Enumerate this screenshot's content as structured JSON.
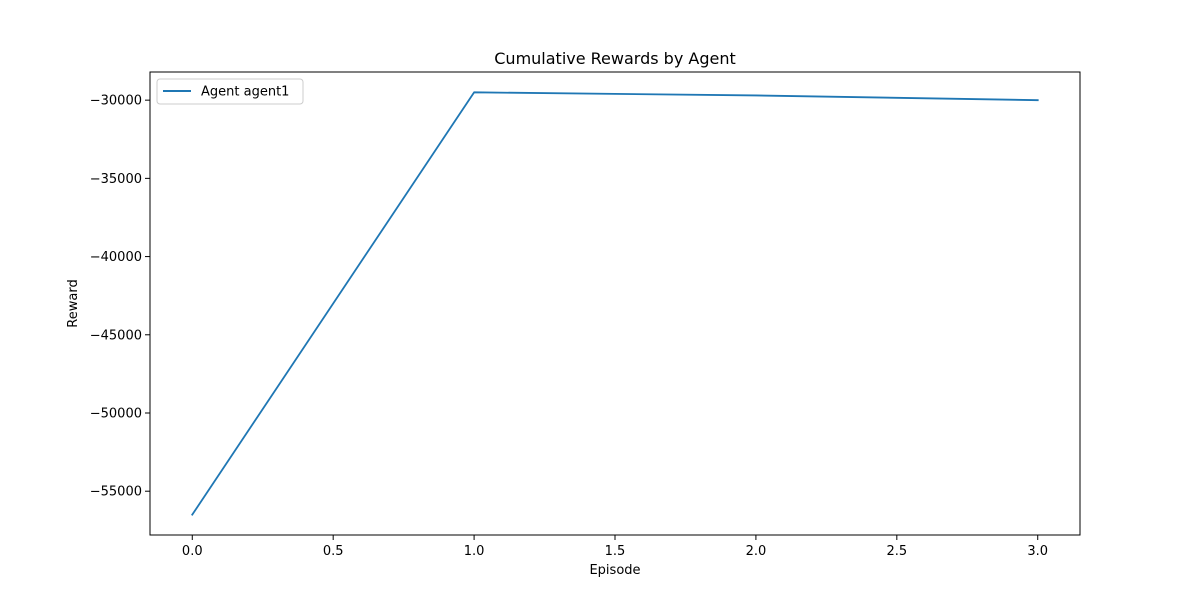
{
  "chart_data": {
    "type": "line",
    "title": "Cumulative Rewards by Agent",
    "xlabel": "Episode",
    "ylabel": "Reward",
    "x": [
      0,
      1,
      2,
      3
    ],
    "series": [
      {
        "name": "Agent agent1",
        "color": "#1f77b4",
        "values": [
          -56500,
          -29500,
          -29700,
          -30000
        ]
      }
    ],
    "xlim": [
      -0.15,
      3.15
    ],
    "ylim": [
      -57800,
      -28200
    ],
    "xticks": [
      0.0,
      0.5,
      1.0,
      1.5,
      2.0,
      2.5,
      3.0
    ],
    "xtick_labels": [
      "0.0",
      "0.5",
      "1.0",
      "1.5",
      "2.0",
      "2.5",
      "3.0"
    ],
    "yticks": [
      -55000,
      -50000,
      -45000,
      -40000,
      -35000,
      -30000
    ],
    "ytick_labels": [
      "−55000",
      "−50000",
      "−45000",
      "−40000",
      "−35000",
      "−30000"
    ],
    "grid": false,
    "legend_position": "upper-left"
  }
}
